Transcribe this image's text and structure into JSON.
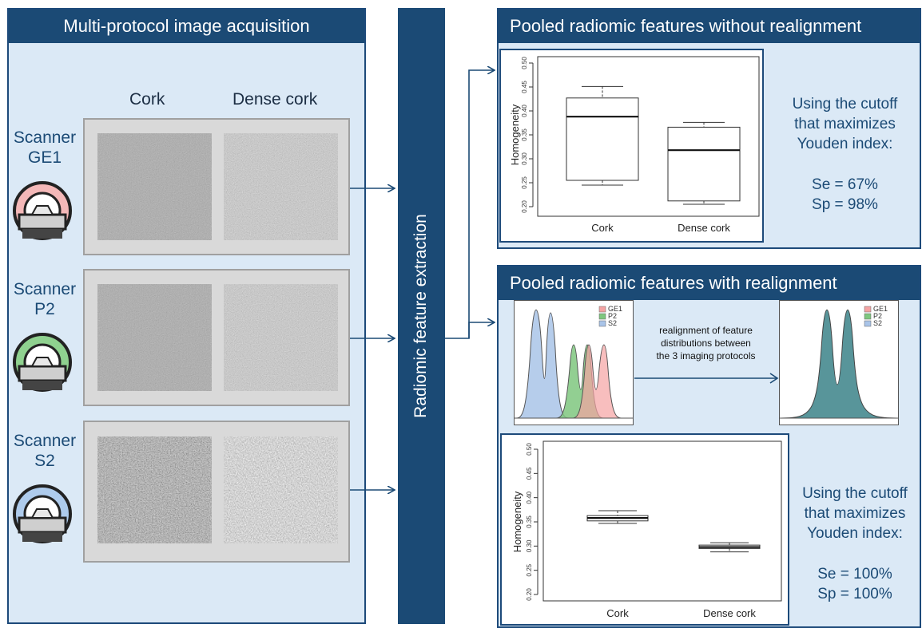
{
  "left_panel": {
    "title": "Multi-protocol image acquisition",
    "col_cork": "Cork",
    "col_dense": "Dense cork",
    "scanners": [
      {
        "line1": "Scanner",
        "line2": "GE1",
        "color": "#f4b8b8"
      },
      {
        "line1": "Scanner",
        "line2": "P2",
        "color": "#8fd18f"
      },
      {
        "line1": "Scanner",
        "line2": "S2",
        "color": "#aecbec"
      }
    ]
  },
  "middle": {
    "label": "Radiomic feature extraction"
  },
  "top_panel": {
    "title": "Pooled radiomic features without realignment",
    "result_lines": [
      "Using the cutoff",
      "that maximizes",
      "Youden index:"
    ],
    "se": "Se = 67%",
    "sp": "Sp = 98%"
  },
  "bottom_panel": {
    "title": "Pooled radiomic features with realignment",
    "realign_lines": [
      "realignment of feature",
      "distributions between",
      "the 3 imaging protocols"
    ],
    "legend": [
      "GE1",
      "P2",
      "S2"
    ],
    "legend_colors": [
      "#f5a3a3",
      "#7fc77f",
      "#a9c4e8"
    ],
    "result_lines": [
      "Using the cutoff",
      "that maximizes",
      "Youden index:"
    ],
    "se": "Se = 100%",
    "sp": "Sp = 100%"
  },
  "chart_data": [
    {
      "type": "box",
      "ylabel": "Homogeneity",
      "ylim": [
        0.2,
        0.5
      ],
      "yticks": [
        "0.20",
        "0.25",
        "0.30",
        "0.35",
        "0.40",
        "0.45",
        "0.50"
      ],
      "categories": [
        "Cork",
        "Dense cork"
      ],
      "boxes": [
        {
          "min": 0.245,
          "q1": 0.255,
          "median": 0.388,
          "q3": 0.427,
          "max": 0.451
        },
        {
          "min": 0.205,
          "q1": 0.212,
          "median": 0.318,
          "q3": 0.366,
          "max": 0.376
        }
      ]
    },
    {
      "type": "box",
      "ylabel": "Homogeneity",
      "ylim": [
        0.2,
        0.5
      ],
      "yticks": [
        "0.20",
        "0.25",
        "0.30",
        "0.35",
        "0.40",
        "0.45",
        "0.50"
      ],
      "categories": [
        "Cork",
        "Dense cork"
      ],
      "boxes": [
        {
          "min": 0.347,
          "q1": 0.352,
          "median": 0.358,
          "q3": 0.363,
          "max": 0.373
        },
        {
          "min": 0.288,
          "q1": 0.295,
          "median": 0.298,
          "q3": 0.302,
          "max": 0.307
        }
      ]
    }
  ]
}
